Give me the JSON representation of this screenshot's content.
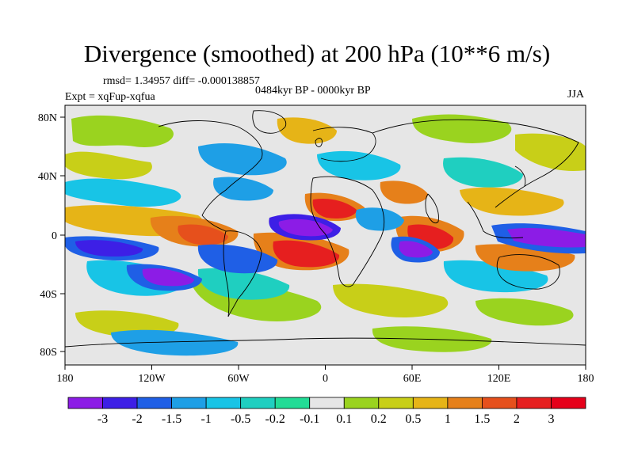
{
  "title": "Divergence (smoothed) at 200 hPa (10**6 m/s)",
  "stats_line": "rmsd= 1.34957 diff= -0.000138857",
  "period": "0484kyr BP - 0000kyr BP",
  "experiment": "Expt = xqFup-xqfua",
  "season": "JJA",
  "lat_labels": [
    "80N",
    "40N",
    "0",
    "40S",
    "80S"
  ],
  "lon_labels": [
    "180",
    "120W",
    "60W",
    "0",
    "60E",
    "120E",
    "180"
  ],
  "colorbar": {
    "labels": [
      "-3",
      "-2",
      "-1.5",
      "-1",
      "-0.5",
      "-0.2",
      "-0.1",
      "0.1",
      "0.2",
      "0.5",
      "1",
      "1.5",
      "2",
      "3"
    ],
    "colors": [
      "#8c1ce6",
      "#3d1fe6",
      "#1f5fe6",
      "#1e9fe6",
      "#18c4e6",
      "#1fcfc0",
      "#22dc96",
      "#e6e6e6",
      "#9ad31f",
      "#c8cf18",
      "#e6b417",
      "#e6801a",
      "#e6501c",
      "#e61f1f",
      "#e6001a"
    ]
  },
  "legend_colors": {
    "background": "#e6e6e6"
  }
}
